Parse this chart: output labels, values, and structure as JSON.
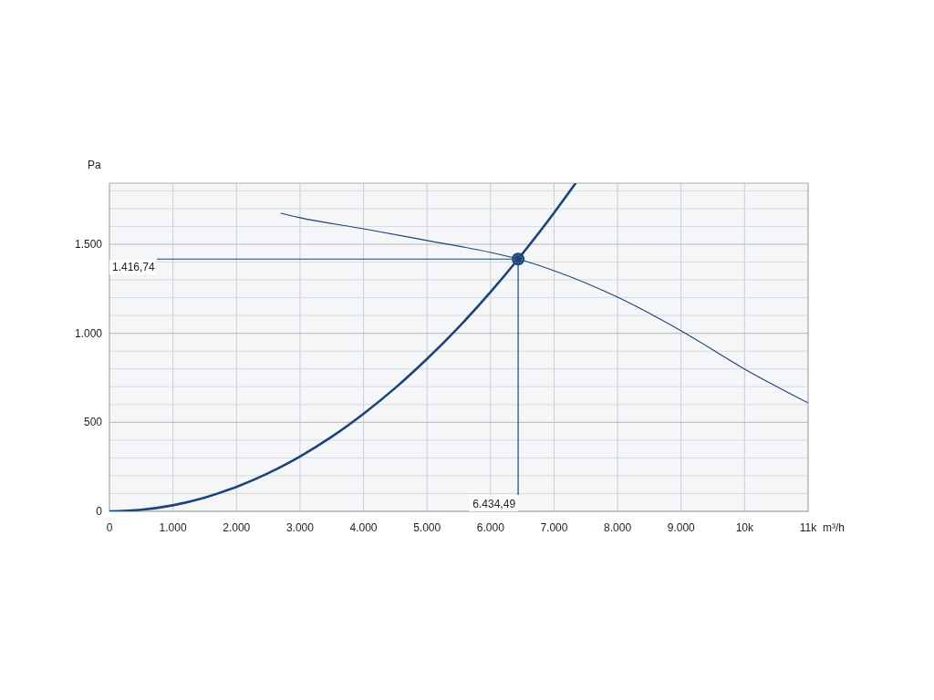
{
  "chart_data": {
    "type": "line",
    "xlabel": "m³/h",
    "ylabel": "Pa",
    "xlim": [
      0,
      11000
    ],
    "ylim": [
      0,
      1843
    ],
    "xticks": [
      0,
      {
        "value": 1000,
        "label": "1.000"
      },
      {
        "value": 2000,
        "label": "2.000"
      },
      {
        "value": 3000,
        "label": "3.000"
      },
      {
        "value": 4000,
        "label": "4.000"
      },
      {
        "value": 5000,
        "label": "5.000"
      },
      {
        "value": 6000,
        "label": "6.000"
      },
      {
        "value": 7000,
        "label": "7.000"
      },
      {
        "value": 8000,
        "label": "8.000"
      },
      {
        "value": 9000,
        "label": "9.000"
      },
      {
        "value": 10000,
        "label": "10k"
      },
      {
        "value": 11000,
        "label": "11k"
      }
    ],
    "yticks": [
      0,
      {
        "value": 100,
        "label": null
      },
      {
        "value": 200,
        "label": null
      },
      {
        "value": 300,
        "label": null
      },
      {
        "value": 400,
        "label": null
      },
      500,
      {
        "value": 600,
        "label": null
      },
      {
        "value": 700,
        "label": null
      },
      {
        "value": 800,
        "label": null
      },
      {
        "value": 900,
        "label": null
      },
      {
        "value": 1000,
        "label": "1.000"
      },
      {
        "value": 1100,
        "label": null
      },
      {
        "value": 1200,
        "label": null
      },
      {
        "value": 1300,
        "label": null
      },
      {
        "value": 1400,
        "label": null
      },
      {
        "value": 1500,
        "label": "1.500"
      },
      {
        "value": 1600,
        "label": null
      },
      {
        "value": 1700,
        "label": null
      },
      {
        "value": 1800,
        "label": null
      }
    ],
    "grid": true,
    "series": [
      {
        "color": "#1d4477",
        "x": [
          0,
          500,
          1000,
          1500,
          2000,
          2500,
          3000,
          3500,
          4000,
          4500,
          5000,
          5500,
          6000,
          6434.49,
          6500,
          7000,
          7339
        ],
        "values": [
          0,
          9,
          34,
          77,
          137,
          214,
          308,
          419,
          548,
          693,
          856,
          1035,
          1232,
          1417,
          1446,
          1677,
          1843
        ]
      },
      {
        "color": "#1d4477",
        "x": [
          2700,
          3000,
          4000,
          5000,
          6000,
          6434.49,
          7000,
          8000,
          9000,
          10000,
          11000
        ],
        "values": [
          1674,
          1649,
          1587,
          1521,
          1454,
          1417,
          1352,
          1203,
          1014,
          799,
          609
        ]
      },
      {
        "type": "scatter",
        "color": "#1d4477",
        "marker": "circle",
        "x": [
          6434.49
        ],
        "values": [
          1416.74
        ]
      }
    ],
    "ref_lines": [
      {
        "axis": "y",
        "value": 1416.74,
        "label": "1.416,74",
        "color": "#1d4477"
      },
      {
        "axis": "x",
        "value": 6434.49,
        "label": "6.434,49",
        "color": "#1d4477"
      }
    ]
  }
}
